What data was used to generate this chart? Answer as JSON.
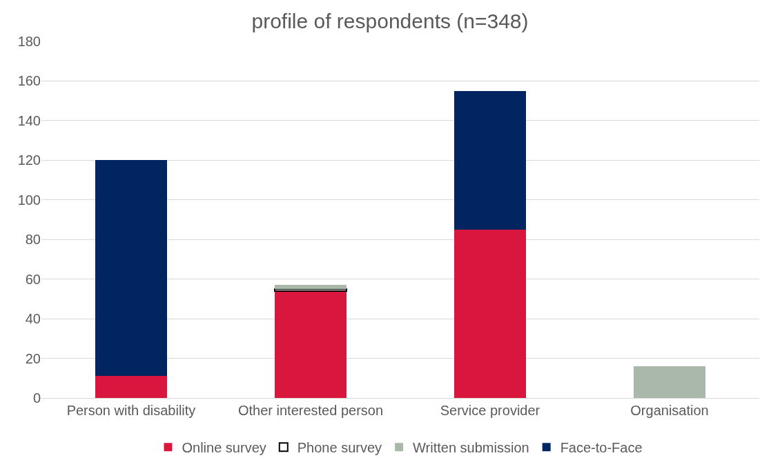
{
  "chart_data": {
    "type": "bar",
    "title": "profile of respondents (n=348)",
    "stacked": true,
    "categories": [
      "Person with disability",
      "Other interested person",
      "Service provider",
      "Organisation"
    ],
    "series": [
      {
        "name": "Online survey",
        "color": "#d9163e",
        "values": [
          11,
          54,
          85,
          null
        ]
      },
      {
        "name": "Phone survey",
        "color": "#ffffff",
        "values": [
          null,
          1,
          null,
          null
        ]
      },
      {
        "name": "Written submission",
        "color": "#a9b8a9",
        "values": [
          null,
          2,
          null,
          16
        ]
      },
      {
        "name": "Face-to-Face",
        "color": "#002561",
        "values": [
          109,
          null,
          70,
          null
        ]
      }
    ],
    "ylim": [
      0,
      180
    ],
    "yticks": [
      0,
      20,
      40,
      60,
      80,
      100,
      120,
      140,
      160,
      180
    ],
    "grid": "y",
    "legend": "bottom"
  }
}
